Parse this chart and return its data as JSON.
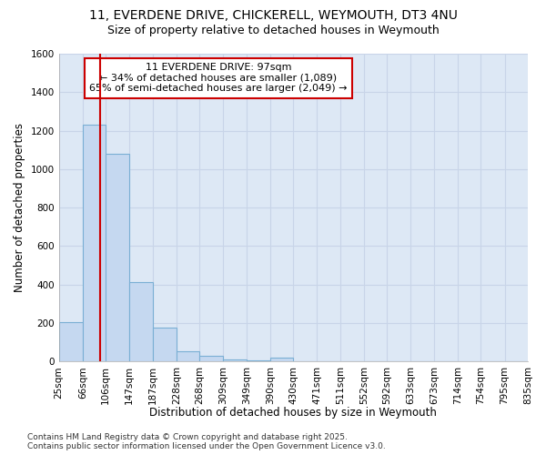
{
  "title_line1": "11, EVERDENE DRIVE, CHICKERELL, WEYMOUTH, DT3 4NU",
  "title_line2": "Size of property relative to detached houses in Weymouth",
  "xlabel": "Distribution of detached houses by size in Weymouth",
  "ylabel": "Number of detached properties",
  "bin_edges": [
    25,
    66,
    106,
    147,
    187,
    228,
    268,
    309,
    349,
    390,
    430,
    471,
    511,
    552,
    592,
    633,
    673,
    714,
    754,
    795,
    835
  ],
  "bar_heights": [
    205,
    1230,
    1080,
    415,
    175,
    55,
    30,
    12,
    5,
    20,
    2,
    1,
    1,
    1,
    0,
    1,
    0,
    0,
    0,
    1
  ],
  "bar_color": "#c5d8f0",
  "bar_edge_color": "#7aafd4",
  "property_size": 97,
  "red_line_color": "#cc0000",
  "annotation_text": "11 EVERDENE DRIVE: 97sqm\n← 34% of detached houses are smaller (1,089)\n65% of semi-detached houses are larger (2,049) →",
  "annotation_box_color": "#ffffff",
  "annotation_box_edge": "#cc0000",
  "ylim": [
    0,
    1600
  ],
  "yticks": [
    0,
    200,
    400,
    600,
    800,
    1000,
    1200,
    1400,
    1600
  ],
  "grid_color": "#c8d4e8",
  "bg_color": "#dde8f5",
  "footer_text": "Contains HM Land Registry data © Crown copyright and database right 2025.\nContains public sector information licensed under the Open Government Licence v3.0.",
  "title_fontsize": 10,
  "subtitle_fontsize": 9,
  "axis_label_fontsize": 8.5,
  "tick_fontsize": 7.5,
  "annotation_fontsize": 8,
  "footer_fontsize": 6.5
}
